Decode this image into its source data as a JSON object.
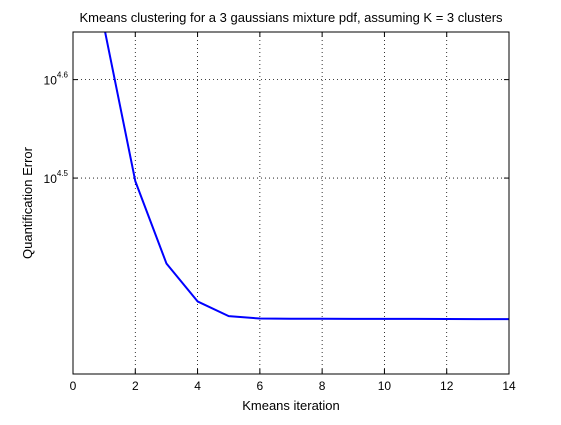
{
  "chart_data": {
    "type": "line",
    "title": "Kmeans clustering for a 3 gaussians mixture pdf, assuming K = 3 clusters",
    "xlabel": "Kmeans iteration",
    "ylabel": "Quantification Error",
    "xlim": [
      0,
      14
    ],
    "ylim": [
      20000,
      44500
    ],
    "yscale": "log",
    "grid": true,
    "x_ticks": [
      {
        "value": 0,
        "label": "0"
      },
      {
        "value": 2,
        "label": "2"
      },
      {
        "value": 4,
        "label": "4"
      },
      {
        "value": 6,
        "label": "6"
      },
      {
        "value": 8,
        "label": "8"
      },
      {
        "value": 10,
        "label": "10"
      },
      {
        "value": 12,
        "label": "12"
      },
      {
        "value": 14,
        "label": "14"
      }
    ],
    "y_ticks": [
      {
        "value": 31623,
        "base": "10",
        "exponent": "4.5"
      },
      {
        "value": 39811,
        "base": "10",
        "exponent": "4.6"
      }
    ],
    "series": [
      {
        "color": "#0000ff",
        "x": [
          1,
          2,
          3,
          4,
          5,
          6,
          7,
          8,
          9,
          10,
          11,
          12,
          13,
          14
        ],
        "y": [
          45000,
          31400,
          25900,
          23700,
          22900,
          22770,
          22760,
          22755,
          22750,
          22750,
          22750,
          22745,
          22740,
          22740
        ]
      }
    ]
  }
}
